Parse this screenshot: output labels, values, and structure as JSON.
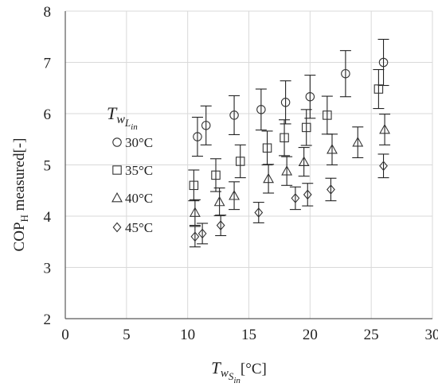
{
  "chart_data": {
    "type": "scatter",
    "x_axis": {
      "label_main": "T",
      "label_sub": "w",
      "label_subsub": "S",
      "label_subsubsub": "in",
      "label_unit": "[°C]",
      "range": [
        0,
        30
      ],
      "ticks": [
        "0",
        "5",
        "10",
        "15",
        "20",
        "25",
        "30"
      ]
    },
    "y_axis": {
      "label_main": "COP",
      "label_sub": "H",
      "label_rest": " measured[-]",
      "range": [
        2,
        8
      ],
      "ticks": [
        "2",
        "3",
        "4",
        "5",
        "6",
        "7",
        "8"
      ]
    },
    "grid": true,
    "legend": {
      "position": "left",
      "title_main": "T",
      "title_sub": "w",
      "title_subsub": "L",
      "title_subsubsub": "in"
    },
    "series": [
      {
        "name": "30°C",
        "marker": "circle",
        "points": [
          {
            "x": 10.8,
            "y": 5.55,
            "err": 0.38
          },
          {
            "x": 11.5,
            "y": 5.77,
            "err": 0.38
          },
          {
            "x": 13.8,
            "y": 5.97,
            "err": 0.38
          },
          {
            "x": 16.0,
            "y": 6.08,
            "err": 0.4
          },
          {
            "x": 18.0,
            "y": 6.22,
            "err": 0.42
          },
          {
            "x": 20.0,
            "y": 6.33,
            "err": 0.42
          },
          {
            "x": 22.9,
            "y": 6.78,
            "err": 0.45
          },
          {
            "x": 26.0,
            "y": 7.0,
            "err": 0.45
          }
        ]
      },
      {
        "name": "35°C",
        "marker": "square",
        "points": [
          {
            "x": 10.5,
            "y": 4.6,
            "err": 0.3
          },
          {
            "x": 12.3,
            "y": 4.8,
            "err": 0.32
          },
          {
            "x": 14.3,
            "y": 5.07,
            "err": 0.32
          },
          {
            "x": 16.5,
            "y": 5.33,
            "err": 0.33
          },
          {
            "x": 17.9,
            "y": 5.53,
            "err": 0.35
          },
          {
            "x": 19.7,
            "y": 5.73,
            "err": 0.35
          },
          {
            "x": 21.4,
            "y": 5.97,
            "err": 0.37
          },
          {
            "x": 25.6,
            "y": 6.48,
            "err": 0.38
          }
        ]
      },
      {
        "name": "40°C",
        "marker": "triangle",
        "points": [
          {
            "x": 10.6,
            "y": 4.07,
            "err": 0.25
          },
          {
            "x": 12.6,
            "y": 4.28,
            "err": 0.27
          },
          {
            "x": 13.8,
            "y": 4.4,
            "err": 0.27
          },
          {
            "x": 16.6,
            "y": 4.73,
            "err": 0.28
          },
          {
            "x": 18.1,
            "y": 4.88,
            "err": 0.28
          },
          {
            "x": 19.5,
            "y": 5.06,
            "err": 0.28
          },
          {
            "x": 21.8,
            "y": 5.3,
            "err": 0.3
          },
          {
            "x": 23.9,
            "y": 5.44,
            "err": 0.3
          },
          {
            "x": 26.1,
            "y": 5.69,
            "err": 0.3
          }
        ]
      },
      {
        "name": "45°C",
        "marker": "diamond",
        "points": [
          {
            "x": 10.6,
            "y": 3.6,
            "err": 0.2
          },
          {
            "x": 11.2,
            "y": 3.66,
            "err": 0.2
          },
          {
            "x": 12.7,
            "y": 3.82,
            "err": 0.2
          },
          {
            "x": 15.8,
            "y": 4.07,
            "err": 0.2
          },
          {
            "x": 18.8,
            "y": 4.35,
            "err": 0.22
          },
          {
            "x": 19.8,
            "y": 4.42,
            "err": 0.22
          },
          {
            "x": 21.7,
            "y": 4.52,
            "err": 0.22
          },
          {
            "x": 26.0,
            "y": 4.98,
            "err": 0.23
          }
        ]
      }
    ]
  }
}
